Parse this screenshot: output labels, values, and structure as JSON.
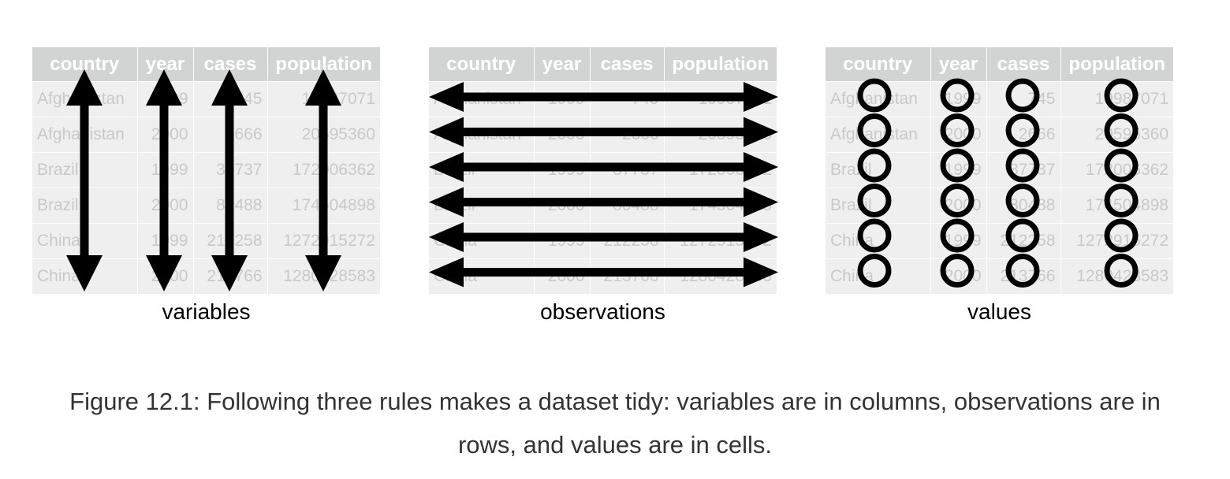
{
  "table": {
    "headers": [
      "country",
      "year",
      "cases",
      "population"
    ],
    "rows": [
      [
        "Afghanistan",
        "1999",
        "745",
        "19987071"
      ],
      [
        "Afghanistan",
        "2000",
        "2666",
        "20595360"
      ],
      [
        "Brazil",
        "1999",
        "37737",
        "172006362"
      ],
      [
        "Brazil",
        "2000",
        "80488",
        "174504898"
      ],
      [
        "China",
        "1999",
        "212258",
        "1272915272"
      ],
      [
        "China",
        "2000",
        "213766",
        "1280428583"
      ]
    ]
  },
  "panels": [
    {
      "label": "variables",
      "marker": "vertical-arrow"
    },
    {
      "label": "observations",
      "marker": "horizontal-arrow"
    },
    {
      "label": "values",
      "marker": "circle"
    }
  ],
  "caption": {
    "line1": "Figure 12.1: Following three rules makes a dataset tidy: variables are in columns, observations are in",
    "line2": "rows, and values are in cells."
  },
  "colors": {
    "header_bg": "#d2d3d3",
    "cell_bg": "#efefef",
    "cell_text": "#c9c9c9",
    "marker": "#000000",
    "caption_text": "#333333"
  }
}
